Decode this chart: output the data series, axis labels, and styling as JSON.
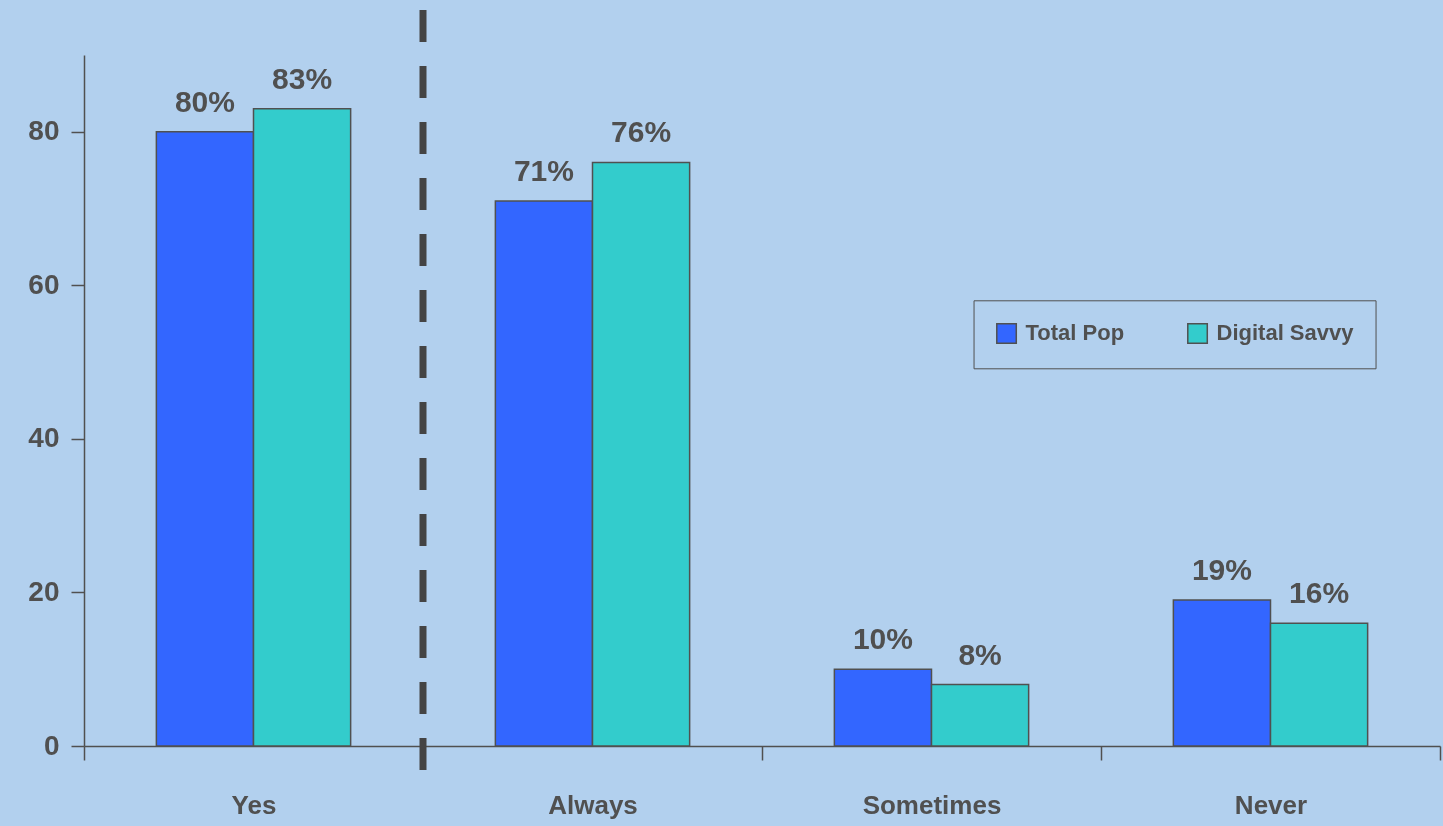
{
  "chart_data": {
    "type": "bar",
    "categories": [
      "Yes",
      "Always",
      "Sometimes",
      "Never"
    ],
    "series": [
      {
        "name": "Total Pop",
        "color": "#3366ff",
        "values": [
          80,
          71,
          10,
          19
        ],
        "value_labels": [
          "80%",
          "71%",
          "10%",
          "19%"
        ]
      },
      {
        "name": "Digital Savvy",
        "color": "#33cccc",
        "values": [
          83,
          76,
          8,
          16
        ],
        "value_labels": [
          "83%",
          "76%",
          "8%",
          "16%"
        ]
      }
    ],
    "ylim": [
      0,
      90
    ],
    "yticks": [
      0,
      20,
      40,
      60,
      80
    ],
    "legend": "right"
  }
}
